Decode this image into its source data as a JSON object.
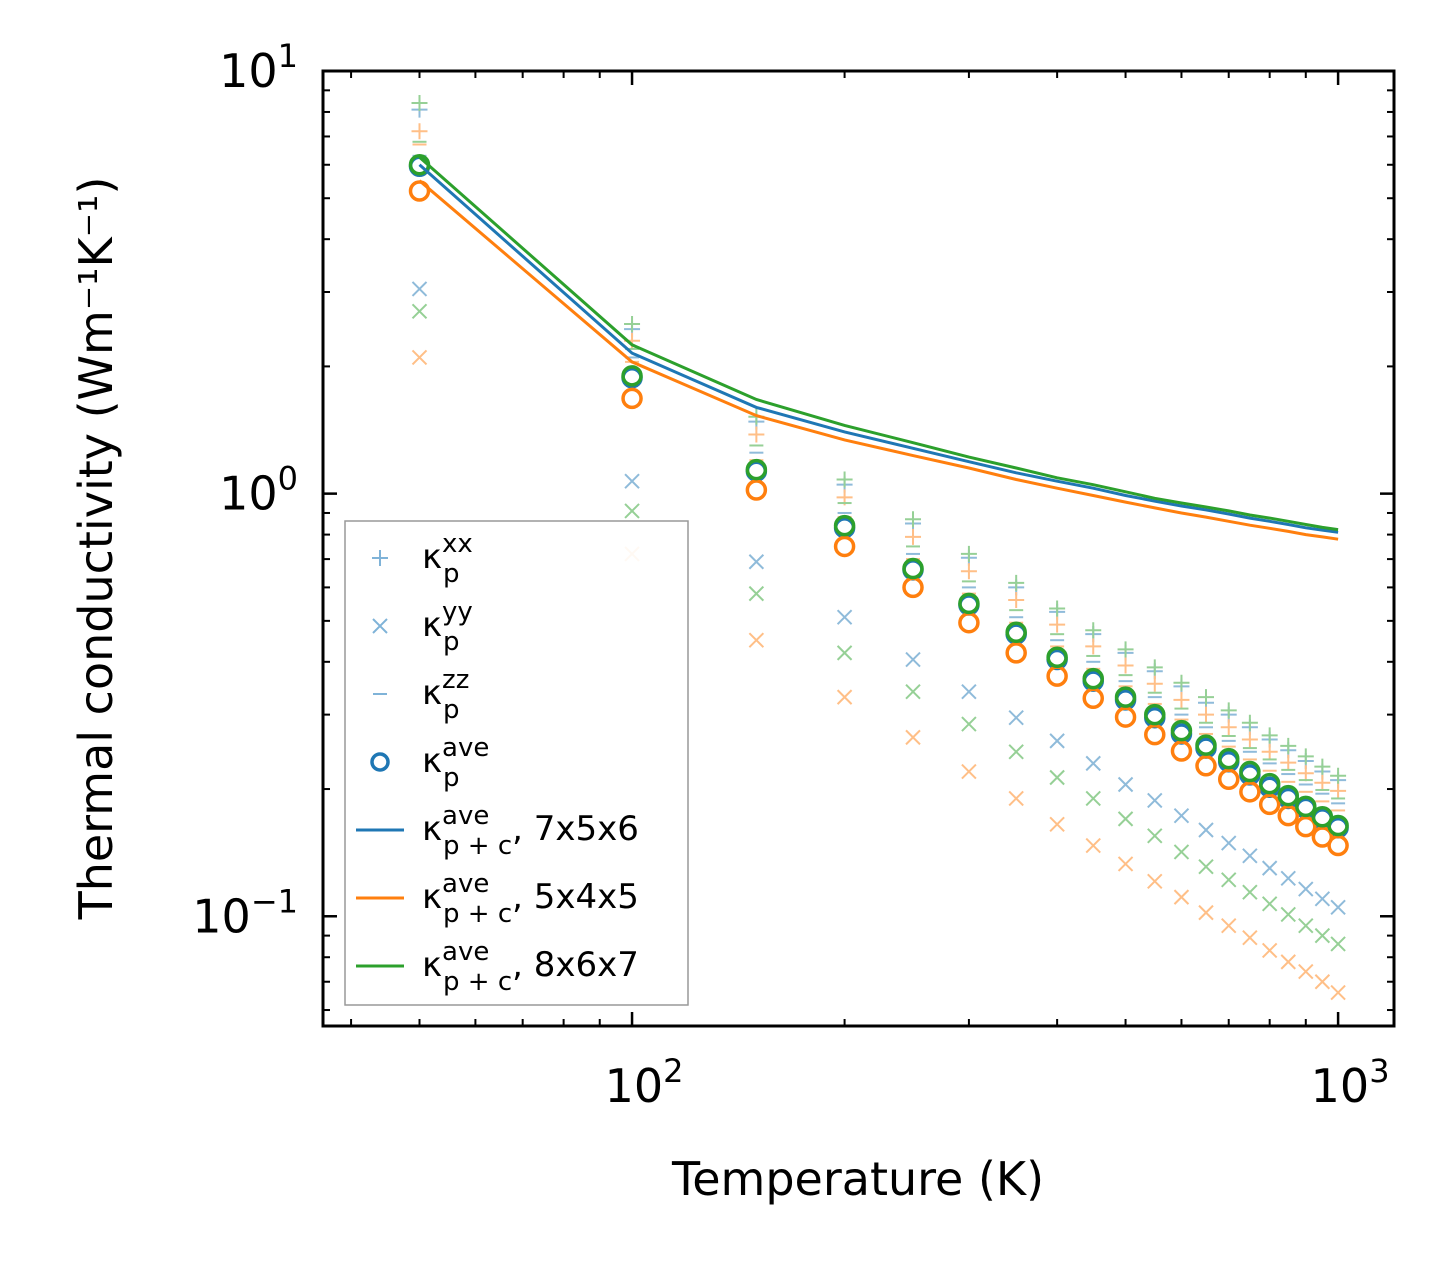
{
  "chart_data": {
    "type": "scatter",
    "title": "",
    "xlabel": "Temperature (K)",
    "ylabel": "Thermal conductivity (Wm⁻¹K⁻¹)",
    "xscale": "log",
    "yscale": "log",
    "xlim": [
      36.5,
      1200
    ],
    "ylim": [
      0.055,
      10
    ],
    "x_ticks": [
      {
        "value": 100,
        "base": "10",
        "exp": "2"
      },
      {
        "value": 1000,
        "base": "10",
        "exp": "3"
      }
    ],
    "y_ticks": [
      {
        "value": 0.1,
        "base": "10",
        "exp": "−1"
      },
      {
        "value": 1,
        "base": "10",
        "exp": "0"
      },
      {
        "value": 10,
        "base": "10",
        "exp": "1"
      }
    ],
    "colors": {
      "7x5x6": "#1f77b4",
      "5x4x5": "#ff7f0e",
      "8x6x7": "#2ca02c",
      "legend_blue_light": "#7fb3d8"
    },
    "x": [
      50,
      100,
      150,
      200,
      250,
      300,
      350,
      400,
      450,
      500,
      550,
      600,
      650,
      700,
      750,
      800,
      850,
      900,
      950,
      1000
    ],
    "groups": [
      {
        "name": "7x5x6",
        "color": "#1f77b4",
        "kxx": [
          8.1,
          2.45,
          1.48,
          1.05,
          0.85,
          0.705,
          0.6,
          0.525,
          0.465,
          0.42,
          0.38,
          0.35,
          0.32,
          0.3,
          0.28,
          0.262,
          0.247,
          0.233,
          0.22,
          0.21
        ],
        "kyy": [
          3.05,
          1.07,
          0.69,
          0.51,
          0.405,
          0.34,
          0.295,
          0.26,
          0.23,
          0.205,
          0.188,
          0.173,
          0.16,
          0.149,
          0.139,
          0.13,
          0.123,
          0.116,
          0.11,
          0.105
        ],
        "kzz": [
          6.3,
          2.1,
          1.25,
          0.9,
          0.72,
          0.6,
          0.51,
          0.45,
          0.4,
          0.36,
          0.33,
          0.3,
          0.28,
          0.26,
          0.245,
          0.23,
          0.217,
          0.205,
          0.195,
          0.185
        ],
        "kave": [
          5.95,
          1.88,
          1.13,
          0.83,
          0.66,
          0.545,
          0.465,
          0.405,
          0.36,
          0.325,
          0.295,
          0.27,
          0.25,
          0.232,
          0.216,
          0.202,
          0.19,
          0.18,
          0.17,
          0.162
        ],
        "kpc": [
          6.0,
          2.15,
          1.6,
          1.4,
          1.28,
          1.19,
          1.12,
          1.07,
          1.03,
          0.99,
          0.96,
          0.935,
          0.915,
          0.895,
          0.875,
          0.86,
          0.845,
          0.83,
          0.82,
          0.81
        ]
      },
      {
        "name": "5x4x5",
        "color": "#ff7f0e",
        "kxx": [
          7.2,
          2.3,
          1.38,
          0.98,
          0.79,
          0.655,
          0.56,
          0.49,
          0.435,
          0.392,
          0.355,
          0.325,
          0.3,
          0.28,
          0.262,
          0.245,
          0.231,
          0.218,
          0.207,
          0.198
        ],
        "kyy": [
          2.1,
          0.72,
          0.45,
          0.33,
          0.265,
          0.22,
          0.19,
          0.165,
          0.147,
          0.133,
          0.121,
          0.111,
          0.102,
          0.095,
          0.089,
          0.083,
          0.078,
          0.074,
          0.07,
          0.066
        ],
        "kzz": [
          6.7,
          2.05,
          1.2,
          0.88,
          0.7,
          0.58,
          0.495,
          0.435,
          0.385,
          0.35,
          0.318,
          0.292,
          0.27,
          0.252,
          0.235,
          0.221,
          0.208,
          0.197,
          0.187,
          0.178
        ],
        "kave": [
          5.2,
          1.68,
          1.02,
          0.75,
          0.6,
          0.495,
          0.42,
          0.37,
          0.328,
          0.296,
          0.269,
          0.246,
          0.227,
          0.211,
          0.197,
          0.184,
          0.173,
          0.163,
          0.154,
          0.147
        ],
        "kpc": [
          5.5,
          2.05,
          1.53,
          1.34,
          1.23,
          1.15,
          1.08,
          1.03,
          0.99,
          0.955,
          0.925,
          0.9,
          0.88,
          0.86,
          0.842,
          0.828,
          0.814,
          0.8,
          0.79,
          0.78
        ]
      },
      {
        "name": "8x6x7",
        "color": "#2ca02c",
        "kxx": [
          8.4,
          2.52,
          1.52,
          1.08,
          0.87,
          0.72,
          0.615,
          0.535,
          0.475,
          0.428,
          0.388,
          0.357,
          0.33,
          0.307,
          0.287,
          0.268,
          0.253,
          0.239,
          0.226,
          0.215
        ],
        "kyy": [
          2.7,
          0.91,
          0.58,
          0.42,
          0.34,
          0.285,
          0.245,
          0.213,
          0.19,
          0.17,
          0.155,
          0.142,
          0.131,
          0.122,
          0.114,
          0.107,
          0.101,
          0.095,
          0.09,
          0.086
        ],
        "kzz": [
          6.8,
          2.2,
          1.3,
          0.95,
          0.75,
          0.62,
          0.53,
          0.465,
          0.413,
          0.372,
          0.338,
          0.31,
          0.287,
          0.267,
          0.25,
          0.235,
          0.222,
          0.21,
          0.199,
          0.19
        ],
        "kave": [
          6.0,
          1.9,
          1.14,
          0.84,
          0.665,
          0.55,
          0.47,
          0.41,
          0.365,
          0.33,
          0.3,
          0.275,
          0.254,
          0.236,
          0.22,
          0.206,
          0.193,
          0.182,
          0.172,
          0.164
        ],
        "kpc": [
          6.25,
          2.25,
          1.67,
          1.45,
          1.32,
          1.22,
          1.15,
          1.09,
          1.05,
          1.01,
          0.975,
          0.95,
          0.93,
          0.91,
          0.89,
          0.875,
          0.86,
          0.845,
          0.832,
          0.822
        ]
      }
    ],
    "legend": {
      "placement": "lower-left",
      "entries": [
        {
          "symbol": "plus",
          "color": "#7fb3d8",
          "label": "κ",
          "sub": "p",
          "sup": "xx",
          "suffix": ""
        },
        {
          "symbol": "x",
          "color": "#7fb3d8",
          "label": "κ",
          "sub": "p",
          "sup": "yy",
          "suffix": ""
        },
        {
          "symbol": "dash",
          "color": "#7fb3d8",
          "label": "κ",
          "sub": "p",
          "sup": "zz",
          "suffix": ""
        },
        {
          "symbol": "circle",
          "color": "#1f77b4",
          "label": "κ",
          "sub": "p",
          "sup": "ave",
          "suffix": ""
        },
        {
          "symbol": "line",
          "color": "#1f77b4",
          "label": "κ",
          "sub": "p + c",
          "sup": "ave",
          "suffix": ", 7x5x6"
        },
        {
          "symbol": "line",
          "color": "#ff7f0e",
          "label": "κ",
          "sub": "p + c",
          "sup": "ave",
          "suffix": ", 5x4x5"
        },
        {
          "symbol": "line",
          "color": "#2ca02c",
          "label": "κ",
          "sub": "p + c",
          "sup": "ave",
          "suffix": ", 8x6x7"
        }
      ]
    }
  }
}
